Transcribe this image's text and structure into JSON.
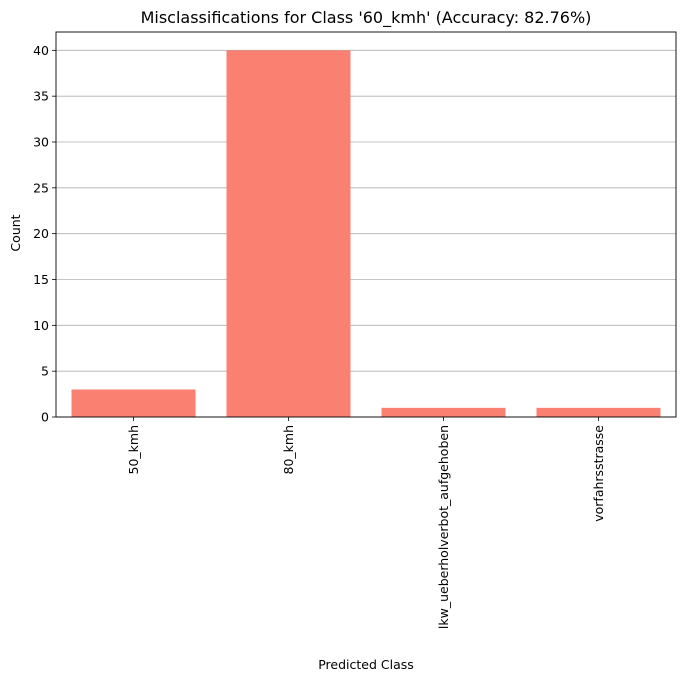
{
  "chart_data": {
    "type": "bar",
    "title": "Misclassifications for Class '60_kmh' (Accuracy: 82.76%)",
    "xlabel": "Predicted Class",
    "ylabel": "Count",
    "categories": [
      "50_kmh",
      "80_kmh",
      "lkw_ueberholverbot_aufgehoben",
      "vorfahrsstrasse"
    ],
    "values": [
      3,
      40,
      1,
      1
    ],
    "ylim": [
      0,
      42
    ],
    "yticks": [
      0,
      5,
      10,
      15,
      20,
      25,
      30,
      35,
      40
    ],
    "ytick_labels": [
      "0",
      "5",
      "10",
      "15",
      "20",
      "25",
      "30",
      "35",
      "40"
    ],
    "grid": "horizontal",
    "legend": "none",
    "bar_color": "#fa8072"
  }
}
